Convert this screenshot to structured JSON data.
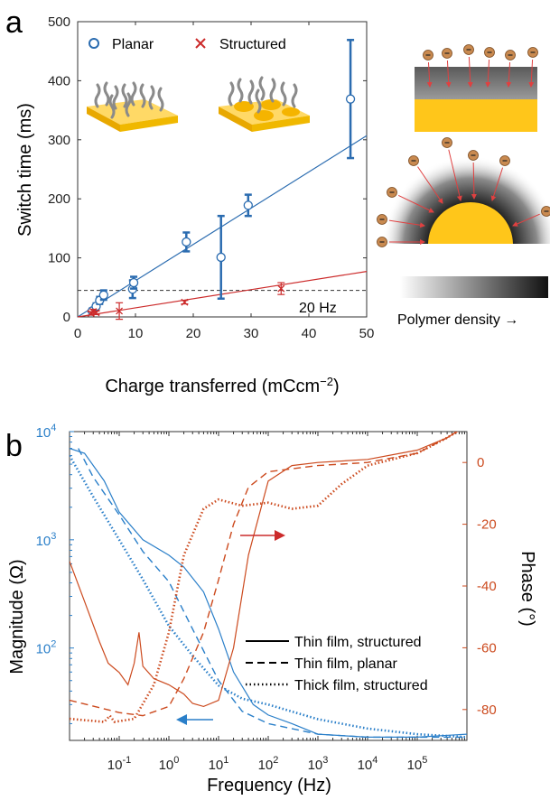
{
  "colors": {
    "planar": "#2b6cb0",
    "structured": "#cc2b2b",
    "magnitude_axis": "#2a7fc9",
    "phase_axis": "#cc4a1e",
    "gold": "#ffc61a",
    "gold_light": "#ffd966",
    "polymer": "#888888"
  },
  "panel_a": {
    "letter": "a",
    "legend": {
      "planar": "Planar",
      "structured": "Structured"
    },
    "threshold_label": "20 Hz",
    "density_label": "Polymer density →"
  },
  "panel_b": {
    "letter": "b",
    "legend": {
      "solid": "Thin film, structured",
      "dashed": "Thin film, planar",
      "dotted": "Thick film, structured"
    }
  },
  "chart_data": [
    {
      "type": "scatter",
      "xlabel": "Charge transferred (mCcm",
      "xlabel_sup": "−2",
      "xlabel_end": ")",
      "ylabel": "Switch time (ms)",
      "xlim": [
        0,
        50
      ],
      "ylim": [
        0,
        500
      ],
      "xticks": [
        "0",
        "10",
        "20",
        "30",
        "40",
        "50"
      ],
      "yticks": [
        "0",
        "100",
        "200",
        "300",
        "400",
        "500"
      ],
      "threshold_y": 45,
      "series": [
        {
          "name": "Planar",
          "marker": "circle",
          "points": [
            {
              "x": 2.5,
              "y": 10,
              "err": 4
            },
            {
              "x": 3.2,
              "y": 18,
              "err": 5
            },
            {
              "x": 3.8,
              "y": 28,
              "err": 6
            },
            {
              "x": 4.5,
              "y": 37,
              "err": 8
            },
            {
              "x": 9.5,
              "y": 47,
              "err": 15
            },
            {
              "x": 9.7,
              "y": 58,
              "err": 10
            },
            {
              "x": 18.8,
              "y": 127,
              "err": 16
            },
            {
              "x": 24.8,
              "y": 101,
              "err": 70
            },
            {
              "x": 29.5,
              "y": 189,
              "err": 18
            },
            {
              "x": 47.2,
              "y": 369,
              "err": 100
            }
          ],
          "fit": {
            "x": [
              0,
              50
            ],
            "y": [
              0,
              307
            ]
          }
        },
        {
          "name": "Structured",
          "marker": "x",
          "points": [
            {
              "x": 2.3,
              "y": 6,
              "err": 3
            },
            {
              "x": 2.7,
              "y": 9,
              "err": 4
            },
            {
              "x": 3.2,
              "y": 7,
              "err": 3
            },
            {
              "x": 7.2,
              "y": 10,
              "err": 14
            },
            {
              "x": 18.5,
              "y": 25,
              "err": 3
            },
            {
              "x": 35.2,
              "y": 48,
              "err": 10
            }
          ],
          "fit": {
            "x": [
              0,
              50
            ],
            "y": [
              0,
              77
            ]
          }
        }
      ]
    },
    {
      "type": "line",
      "xlabel": "Frequency (Hz)",
      "ylabel_left": "Magnitude (Ω)",
      "ylabel_right": "Phase (°)",
      "x_scale": "log",
      "xlim": [
        0.01,
        1000000
      ],
      "ylim_left": [
        14,
        10000
      ],
      "y_scale_left": "log",
      "ylim_right": [
        -90,
        10
      ],
      "xticks": [
        {
          "base": "10",
          "exp": "-1"
        },
        {
          "base": "10",
          "exp": "0"
        },
        {
          "base": "10",
          "exp": "1"
        },
        {
          "base": "10",
          "exp": "2"
        },
        {
          "base": "10",
          "exp": "3"
        },
        {
          "base": "10",
          "exp": "4"
        },
        {
          "base": "10",
          "exp": "5"
        }
      ],
      "yticks_left": [
        {
          "base": "10",
          "exp": "2"
        },
        {
          "base": "10",
          "exp": "3"
        },
        {
          "base": "10",
          "exp": "4"
        }
      ],
      "yticks_right": [
        "0",
        "-20",
        "-40",
        "-60",
        "-80"
      ],
      "series": [
        {
          "name": "Thin film, structured",
          "quantity": "magnitude",
          "style": "solid",
          "points": [
            [
              0.01,
              7000
            ],
            [
              0.02,
              6300
            ],
            [
              0.05,
              3500
            ],
            [
              0.1,
              1800
            ],
            [
              0.3,
              1000
            ],
            [
              1,
              720
            ],
            [
              2,
              560
            ],
            [
              5,
              330
            ],
            [
              10,
              150
            ],
            [
              20,
              60
            ],
            [
              50,
              30
            ],
            [
              100,
              24
            ],
            [
              300,
              20
            ],
            [
              1000,
              16
            ],
            [
              10000,
              15
            ],
            [
              100000,
              15
            ],
            [
              1000000,
              16
            ]
          ]
        },
        {
          "name": "Thin film, planar",
          "quantity": "magnitude",
          "style": "dashed",
          "points": [
            [
              0.015,
              7000
            ],
            [
              0.03,
              3800
            ],
            [
              0.1,
              1700
            ],
            [
              0.3,
              780
            ],
            [
              1,
              410
            ],
            [
              3,
              150
            ],
            [
              10,
              50
            ],
            [
              30,
              26
            ],
            [
              100,
              20
            ],
            [
              1000,
              16
            ],
            [
              10000,
              15
            ],
            [
              100000,
              15
            ],
            [
              1000000,
              15
            ]
          ]
        },
        {
          "name": "Thick film, structured",
          "quantity": "magnitude",
          "style": "dotted",
          "points": [
            [
              0.01,
              6000
            ],
            [
              0.03,
              2500
            ],
            [
              0.1,
              1000
            ],
            [
              0.3,
              430
            ],
            [
              1,
              160
            ],
            [
              3,
              85
            ],
            [
              10,
              45
            ],
            [
              30,
              34
            ],
            [
              100,
              30
            ],
            [
              1000,
              22
            ],
            [
              10000,
              18
            ],
            [
              100000,
              16
            ],
            [
              1000000,
              15
            ]
          ]
        },
        {
          "name": "Thin film, structured",
          "quantity": "phase",
          "style": "solid",
          "points": [
            [
              0.01,
              -32
            ],
            [
              0.02,
              -45
            ],
            [
              0.04,
              -58
            ],
            [
              0.06,
              -65
            ],
            [
              0.1,
              -68
            ],
            [
              0.15,
              -72
            ],
            [
              0.2,
              -65
            ],
            [
              0.25,
              -55
            ],
            [
              0.3,
              -66
            ],
            [
              0.5,
              -70
            ],
            [
              1,
              -72
            ],
            [
              2,
              -75
            ],
            [
              3,
              -78
            ],
            [
              5,
              -79
            ],
            [
              10,
              -77
            ],
            [
              20,
              -60
            ],
            [
              40,
              -30
            ],
            [
              100,
              -6
            ],
            [
              300,
              -1
            ],
            [
              1000,
              0
            ],
            [
              10000,
              1
            ],
            [
              100000,
              4
            ],
            [
              400000,
              8
            ],
            [
              1000000,
              12
            ]
          ]
        },
        {
          "name": "Thin film, planar",
          "quantity": "phase",
          "style": "dashed",
          "points": [
            [
              0.01,
              -77
            ],
            [
              0.1,
              -81
            ],
            [
              0.3,
              -82
            ],
            [
              1,
              -79
            ],
            [
              2,
              -70
            ],
            [
              5,
              -55
            ],
            [
              10,
              -38
            ],
            [
              20,
              -20
            ],
            [
              40,
              -8
            ],
            [
              100,
              -3
            ],
            [
              1000,
              -1
            ],
            [
              10000,
              0
            ],
            [
              100000,
              3
            ],
            [
              400000,
              8
            ],
            [
              1000000,
              12
            ]
          ]
        },
        {
          "name": "Thick film, structured",
          "quantity": "phase",
          "style": "dotted",
          "points": [
            [
              0.01,
              -83
            ],
            [
              0.05,
              -84
            ],
            [
              0.065,
              -82
            ],
            [
              0.08,
              -84
            ],
            [
              0.2,
              -83
            ],
            [
              0.5,
              -72
            ],
            [
              1,
              -55
            ],
            [
              2,
              -30
            ],
            [
              5,
              -15
            ],
            [
              10,
              -12
            ],
            [
              30,
              -14
            ],
            [
              100,
              -13
            ],
            [
              300,
              -15
            ],
            [
              1000,
              -14
            ],
            [
              3000,
              -7
            ],
            [
              10000,
              -1
            ],
            [
              100000,
              3
            ],
            [
              400000,
              8
            ],
            [
              1000000,
              12
            ]
          ]
        }
      ]
    }
  ]
}
